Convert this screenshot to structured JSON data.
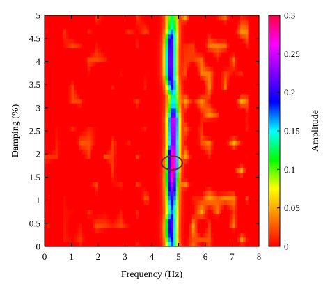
{
  "chart_data": {
    "type": "heatmap",
    "xlabel": "Frequency (Hz)",
    "ylabel": "Damping (%)",
    "colorbar_label": "Amplitude",
    "xlim": [
      0,
      8
    ],
    "ylim": [
      0,
      5
    ],
    "clim": [
      0,
      0.3
    ],
    "x_ticks": [
      "0",
      "1",
      "2",
      "3",
      "4",
      "5",
      "6",
      "7",
      "8"
    ],
    "y_ticks": [
      "0",
      "0.5",
      "1",
      "1.5",
      "2",
      "2.5",
      "3",
      "3.5",
      "4",
      "4.5",
      "5"
    ],
    "colorbar_ticks": [
      "0",
      "0.05",
      "0.1",
      "0.15",
      "0.2",
      "0.25",
      "0.3"
    ],
    "colormap": [
      "#ff0000",
      "#ff8000",
      "#ffff00",
      "#00ff00",
      "#00ffff",
      "#0000ff",
      "#8000ff",
      "#ff00ff",
      "#ff0040"
    ],
    "ridge": {
      "center_frequency": 4.75,
      "profile": [
        {
          "damping": 0.0,
          "amplitude": 0.17,
          "center": 4.75
        },
        {
          "damping": 0.25,
          "amplitude": 0.2,
          "center": 4.72
        },
        {
          "damping": 0.5,
          "amplitude": 0.22,
          "center": 4.72
        },
        {
          "damping": 0.75,
          "amplitude": 0.17,
          "center": 4.75
        },
        {
          "damping": 1.0,
          "amplitude": 0.2,
          "center": 4.75
        },
        {
          "damping": 1.25,
          "amplitude": 0.23,
          "center": 4.75
        },
        {
          "damping": 1.5,
          "amplitude": 0.27,
          "center": 4.75
        },
        {
          "damping": 1.75,
          "amplitude": 0.29,
          "center": 4.78
        },
        {
          "damping": 2.0,
          "amplitude": 0.28,
          "center": 4.78
        },
        {
          "damping": 2.25,
          "amplitude": 0.24,
          "center": 4.8
        },
        {
          "damping": 2.5,
          "amplitude": 0.25,
          "center": 4.8
        },
        {
          "damping": 2.75,
          "amplitude": 0.26,
          "center": 4.8
        },
        {
          "damping": 3.0,
          "amplitude": 0.17,
          "center": 4.8
        },
        {
          "damping": 3.25,
          "amplitude": 0.14,
          "center": 4.8
        },
        {
          "damping": 3.5,
          "amplitude": 0.2,
          "center": 4.75
        },
        {
          "damping": 3.75,
          "amplitude": 0.22,
          "center": 4.7
        },
        {
          "damping": 4.0,
          "amplitude": 0.23,
          "center": 4.7
        },
        {
          "damping": 4.25,
          "amplitude": 0.22,
          "center": 4.7
        },
        {
          "damping": 4.5,
          "amplitude": 0.21,
          "center": 4.72
        },
        {
          "damping": 4.75,
          "amplitude": 0.14,
          "center": 4.75
        },
        {
          "damping": 5.0,
          "amplitude": 0.12,
          "center": 4.75
        }
      ]
    },
    "marked_peak": {
      "frequency": 4.75,
      "damping": 1.8,
      "amplitude": 0.3
    },
    "grid": false
  }
}
